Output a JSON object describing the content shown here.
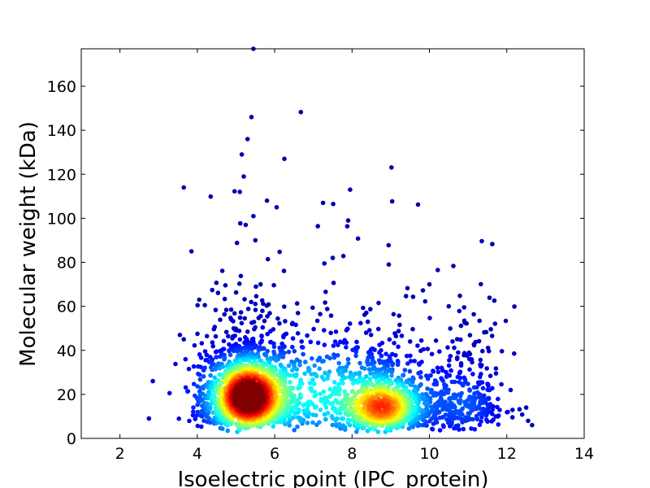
{
  "chart_data": {
    "type": "scatter",
    "title": "",
    "xlabel": "Isoelectric point (IPC_protein)",
    "ylabel": "Molecular weight (kDa)",
    "xlim": [
      1,
      14
    ],
    "ylim": [
      0,
      177
    ],
    "xticks": [
      2,
      4,
      6,
      8,
      10,
      12,
      14
    ],
    "yticks": [
      0,
      20,
      40,
      60,
      80,
      100,
      120,
      140,
      160
    ],
    "xtick_labels": [
      "2",
      "4",
      "6",
      "8",
      "10",
      "12",
      "14"
    ],
    "ytick_labels": [
      "0",
      "20",
      "40",
      "60",
      "80",
      "100",
      "120",
      "140",
      "160"
    ],
    "grid": false,
    "legend": "none",
    "color_encoding": "point density (jet colormap: blue = sparse, red = dense)",
    "colormap": [
      "#00007f",
      "#0000ff",
      "#007fff",
      "#00ffff",
      "#7fff7f",
      "#ffff00",
      "#ff7f00",
      "#ff0000",
      "#7f0000"
    ],
    "density_clusters": [
      {
        "center_x": 5.3,
        "center_y": 20,
        "note": "densest region (red)"
      },
      {
        "center_x": 8.8,
        "center_y": 15,
        "note": "secondary region (yellow-green)"
      }
    ],
    "outliers": [
      {
        "x": 5.45,
        "y": 177
      },
      {
        "x": 5.4,
        "y": 146
      },
      {
        "x": 5.3,
        "y": 136
      },
      {
        "x": 5.15,
        "y": 129
      },
      {
        "x": 6.25,
        "y": 127
      },
      {
        "x": 5.2,
        "y": 119
      },
      {
        "x": 3.65,
        "y": 114
      },
      {
        "x": 7.95,
        "y": 113
      },
      {
        "x": 5.1,
        "y": 112
      },
      {
        "x": 5.8,
        "y": 108
      },
      {
        "x": 7.25,
        "y": 107
      },
      {
        "x": 6.05,
        "y": 105
      },
      {
        "x": 5.45,
        "y": 101
      },
      {
        "x": 7.9,
        "y": 99
      },
      {
        "x": 5.25,
        "y": 97
      },
      {
        "x": 3.85,
        "y": 85
      },
      {
        "x": 5.5,
        "y": 90
      },
      {
        "x": 7.5,
        "y": 82
      },
      {
        "x": 8.95,
        "y": 79
      },
      {
        "x": 4.05,
        "y": 63
      },
      {
        "x": 10.0,
        "y": 70
      },
      {
        "x": 10.5,
        "y": 60
      },
      {
        "x": 12.5,
        "y": 14
      },
      {
        "x": 12.55,
        "y": 8
      },
      {
        "x": 2.75,
        "y": 9
      },
      {
        "x": 2.85,
        "y": 26
      },
      {
        "x": 3.55,
        "y": 47
      },
      {
        "x": 3.65,
        "y": 45
      },
      {
        "x": 12.1,
        "y": 22
      }
    ]
  }
}
